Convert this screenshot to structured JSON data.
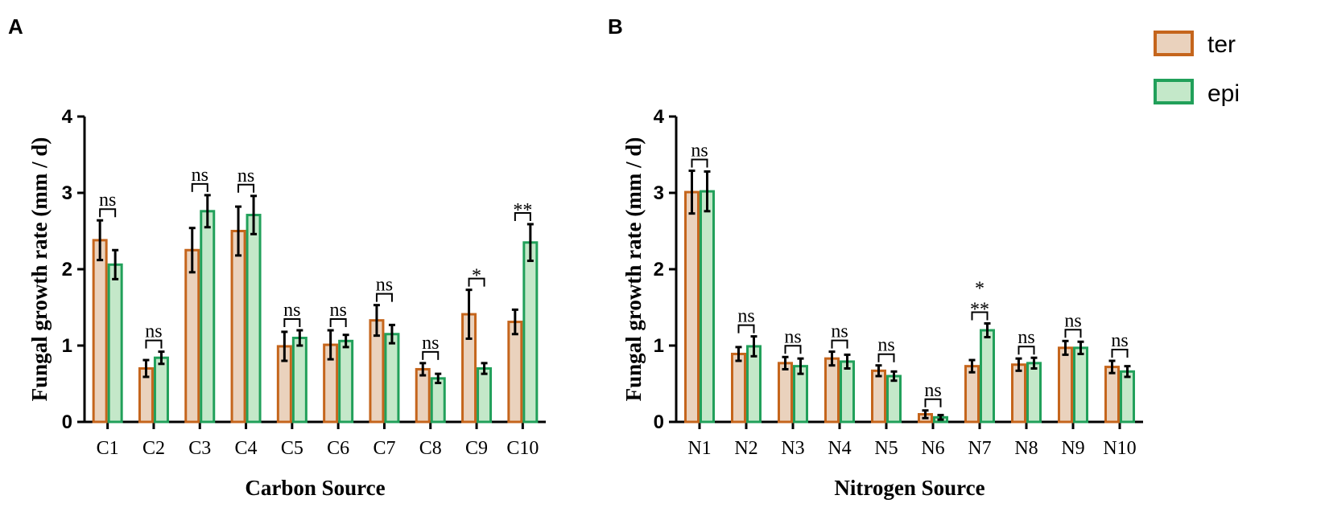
{
  "colors": {
    "ter_fill": "#ead2bd",
    "ter_stroke": "#c5651c",
    "epi_fill": "#c4e8c9",
    "epi_stroke": "#21a05a"
  },
  "legend": [
    {
      "key": "ter",
      "label": "ter"
    },
    {
      "key": "epi",
      "label": "epi"
    }
  ],
  "chart_data": [
    {
      "type": "bar",
      "panel": "A",
      "xlabel": "Carbon Source",
      "ylabel": "Fungal growth rate (mm / d)",
      "ylim": [
        0,
        4
      ],
      "yticks": [
        0,
        1,
        2,
        3,
        4
      ],
      "categories": [
        "C1",
        "C2",
        "C3",
        "C4",
        "C5",
        "C6",
        "C7",
        "C8",
        "C9",
        "C10"
      ],
      "series": [
        {
          "name": "ter",
          "values": [
            2.38,
            0.7,
            2.25,
            2.5,
            0.99,
            1.01,
            1.33,
            0.69,
            1.41,
            1.31
          ],
          "errors": [
            0.26,
            0.11,
            0.29,
            0.32,
            0.19,
            0.19,
            0.2,
            0.08,
            0.32,
            0.16
          ]
        },
        {
          "name": "epi",
          "values": [
            2.06,
            0.84,
            2.76,
            2.71,
            1.1,
            1.06,
            1.15,
            0.57,
            0.7,
            2.35
          ],
          "errors": [
            0.19,
            0.08,
            0.21,
            0.25,
            0.1,
            0.08,
            0.12,
            0.06,
            0.07,
            0.24
          ]
        }
      ],
      "significance": [
        "ns",
        "ns",
        "ns",
        "ns",
        "ns",
        "ns",
        "ns",
        "ns",
        "*",
        "**"
      ]
    },
    {
      "type": "bar",
      "panel": "B",
      "xlabel": "Nitrogen Source",
      "ylabel": "Fungal growth rate (mm / d)",
      "ylim": [
        0,
        4
      ],
      "yticks": [
        0,
        1,
        2,
        3,
        4
      ],
      "categories": [
        "N1",
        "N2",
        "N3",
        "N4",
        "N5",
        "N6",
        "N7",
        "N8",
        "N9",
        "N10"
      ],
      "series": [
        {
          "name": "ter",
          "values": [
            3.01,
            0.89,
            0.77,
            0.83,
            0.67,
            0.1,
            0.73,
            0.75,
            0.97,
            0.72
          ],
          "errors": [
            0.28,
            0.09,
            0.08,
            0.09,
            0.07,
            0.05,
            0.08,
            0.08,
            0.09,
            0.08
          ]
        },
        {
          "name": "epi",
          "values": [
            3.02,
            0.99,
            0.73,
            0.79,
            0.6,
            0.06,
            1.2,
            0.77,
            0.97,
            0.66
          ],
          "errors": [
            0.26,
            0.13,
            0.1,
            0.09,
            0.06,
            0.03,
            0.09,
            0.07,
            0.08,
            0.07
          ]
        }
      ],
      "significance": [
        "ns",
        "ns",
        "ns",
        "ns",
        "ns",
        "ns",
        "***",
        "ns",
        "ns",
        "ns"
      ]
    }
  ]
}
